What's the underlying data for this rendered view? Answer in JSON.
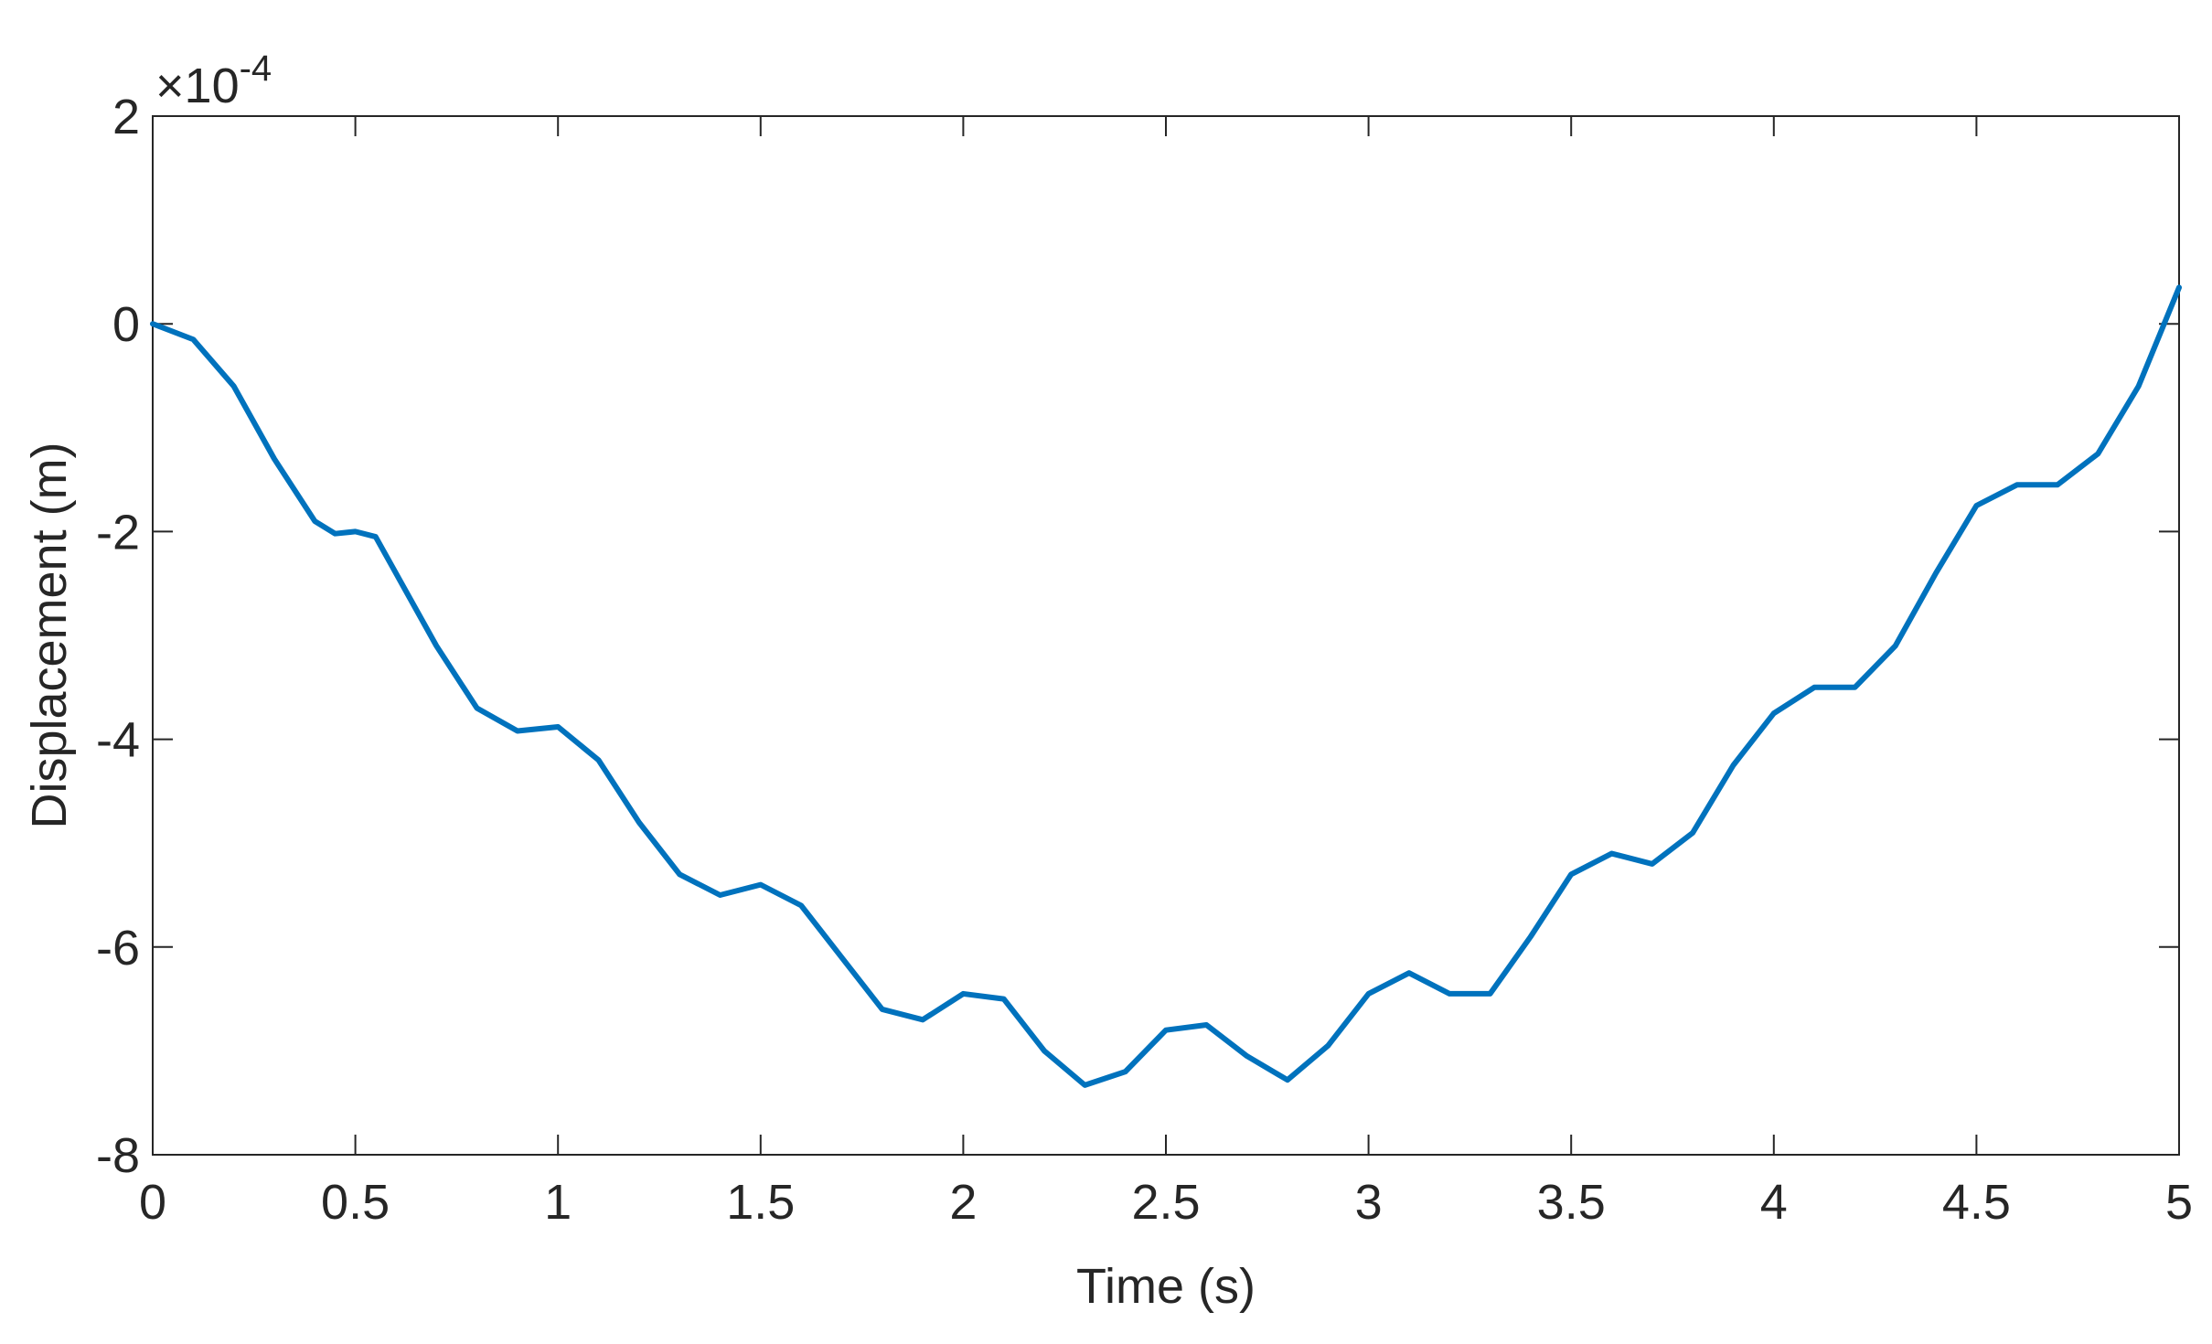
{
  "chart_data": {
    "type": "line",
    "xlabel": "Time (s)",
    "ylabel": "Displacement (m)",
    "y_multiplier": {
      "base": "×10",
      "exponent": "-4"
    },
    "x": [
      0,
      0.1,
      0.2,
      0.3,
      0.4,
      0.45,
      0.5,
      0.55,
      0.6,
      0.7,
      0.8,
      0.9,
      1.0,
      1.1,
      1.2,
      1.3,
      1.4,
      1.5,
      1.6,
      1.7,
      1.8,
      1.9,
      2.0,
      2.1,
      2.2,
      2.3,
      2.4,
      2.5,
      2.6,
      2.7,
      2.8,
      2.9,
      3.0,
      3.1,
      3.2,
      3.3,
      3.4,
      3.5,
      3.6,
      3.7,
      3.8,
      3.9,
      4.0,
      4.1,
      4.2,
      4.3,
      4.4,
      4.5,
      4.6,
      4.7,
      4.8,
      4.9,
      5.0
    ],
    "values": [
      0,
      -0.15,
      -0.6,
      -1.3,
      -1.9,
      -2.02,
      -2.0,
      -2.05,
      -2.4,
      -3.1,
      -3.7,
      -3.92,
      -3.88,
      -4.2,
      -4.8,
      -5.3,
      -5.5,
      -5.4,
      -5.6,
      -6.1,
      -6.6,
      -6.7,
      -6.45,
      -6.5,
      -7.0,
      -7.33,
      -7.2,
      -6.8,
      -6.75,
      -7.05,
      -7.28,
      -6.95,
      -6.45,
      -6.25,
      -6.45,
      -6.45,
      -5.9,
      -5.3,
      -5.1,
      -5.2,
      -4.9,
      -4.25,
      -3.75,
      -3.5,
      -3.5,
      -3.1,
      -2.4,
      -1.75,
      -1.55,
      -1.55,
      -1.25,
      -0.6,
      0.35
    ],
    "color": "#0072bd",
    "xlim": [
      0,
      5
    ],
    "xticks": [
      0,
      0.5,
      1,
      1.5,
      2,
      2.5,
      3,
      3.5,
      4,
      4.5,
      5
    ],
    "ylim": [
      -8,
      2
    ],
    "yticks": [
      -8,
      -6,
      -4,
      -2,
      0,
      2
    ],
    "grid": false
  }
}
